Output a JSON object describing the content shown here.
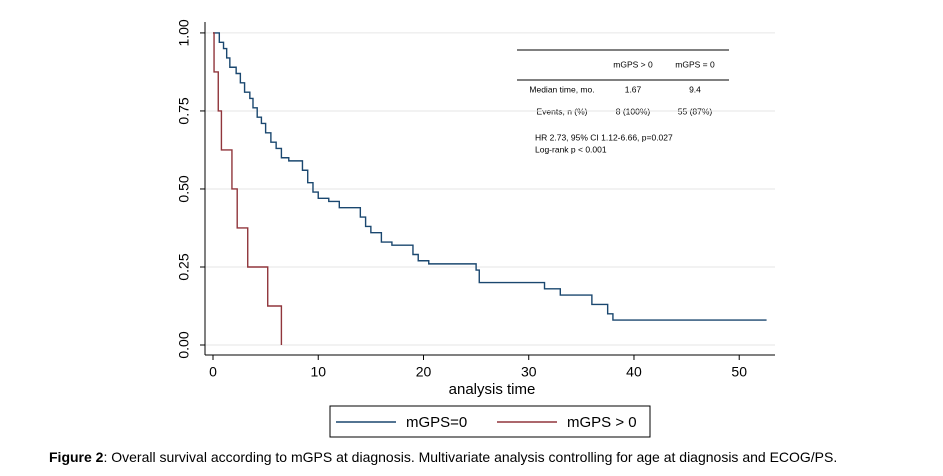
{
  "chart_data": {
    "type": "step",
    "x_label": "analysis time",
    "xlim": [
      -0.76,
      53.4
    ],
    "ylim": [
      -0.032,
      1.035
    ],
    "xticks": [
      0,
      10,
      20,
      30,
      40,
      50
    ],
    "yticks": [
      {
        "value": 0,
        "label": "0.00"
      },
      {
        "value": 0.25,
        "label": "0.25"
      },
      {
        "value": 0.5,
        "label": "0.50"
      },
      {
        "value": 0.75,
        "label": "0.75"
      },
      {
        "value": 1,
        "label": "1.00"
      }
    ],
    "grid": true,
    "series": [
      {
        "name": "mGPS=0",
        "color": "#1a476f",
        "x": [
          0,
          0.6,
          1.0,
          1.3,
          1.6,
          2.2,
          2.6,
          3.0,
          3.5,
          3.8,
          4.2,
          4.6,
          5.0,
          5.5,
          6.0,
          6.5,
          7.2,
          8.5,
          9.0,
          9.5,
          10.0,
          11.0,
          12.0,
          14.0,
          14.5,
          15.0,
          16.0,
          17.0,
          19.0,
          19.5,
          20.5,
          25.0,
          25.3,
          31.5,
          33.0,
          36.0,
          37.5,
          38.0,
          52.6
        ],
        "y": [
          1,
          0.97,
          0.95,
          0.92,
          0.89,
          0.87,
          0.84,
          0.81,
          0.79,
          0.76,
          0.73,
          0.71,
          0.68,
          0.65,
          0.63,
          0.6,
          0.59,
          0.56,
          0.52,
          0.49,
          0.47,
          0.46,
          0.44,
          0.41,
          0.38,
          0.36,
          0.33,
          0.32,
          0.29,
          0.27,
          0.26,
          0.24,
          0.2,
          0.18,
          0.16,
          0.13,
          0.1,
          0.08,
          0.08
        ]
      },
      {
        "name": "mGPS > 0",
        "color": "#90353b",
        "x": [
          0,
          0.1,
          0.5,
          0.8,
          1.8,
          2.3,
          3.3,
          5.2,
          6.5
        ],
        "y": [
          1,
          0.875,
          0.75,
          0.625,
          0.5,
          0.375,
          0.25,
          0.125,
          0
        ]
      }
    ],
    "inset_table": {
      "header": [
        "mGPS > 0",
        "mGPS = 0"
      ],
      "rows": [
        [
          "Median time, mo.",
          "1.67",
          "9.4"
        ],
        [
          "Events, n (%)",
          "8 (100%)",
          "55 (87%)"
        ]
      ]
    },
    "annotations": [
      "HR 2.73, 95% CI 1.12-6.66, p=0.027",
      "Log-rank p < 0.001"
    ]
  },
  "caption": {
    "label": "Figure 2",
    "text": ": Overall survival according to mGPS at diagnosis. Multivariate analysis controlling for age at diagnosis and ECOG/PS."
  }
}
